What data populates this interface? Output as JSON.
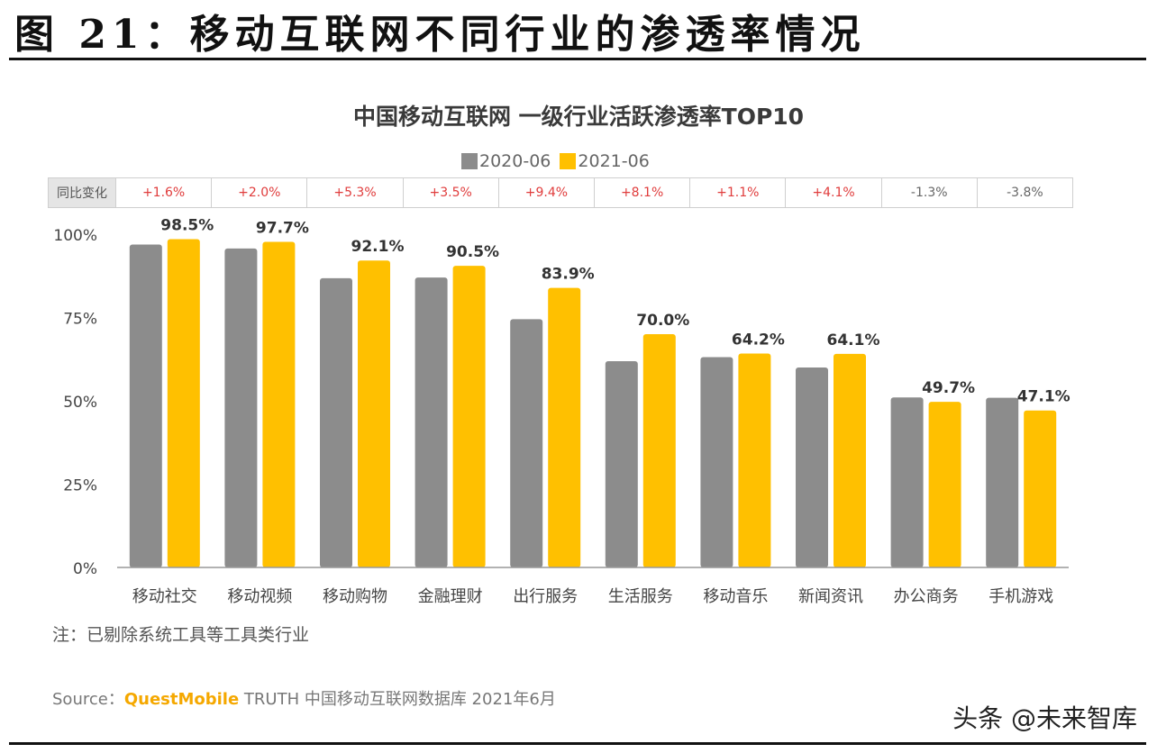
{
  "figure_title": "图 21：移动互联网不同行业的渗透率情况",
  "note": "注：已剔除系统工具等工具类行业",
  "source": {
    "prefix": "Source：",
    "brand": "QuestMobile",
    "rest": " TRUTH 中国移动互联网数据库 2021年6月"
  },
  "watermark": "头条 @未来智库",
  "colors": {
    "series_2020": "#8c8c8c",
    "series_2021": "#ffc000",
    "positive_change": "#e03c3c"
  },
  "yoy": {
    "header": "同比变化",
    "values": [
      "+1.6%",
      "+2.0%",
      "+5.3%",
      "+3.5%",
      "+9.4%",
      "+8.1%",
      "+1.1%",
      "+4.1%",
      "-1.3%",
      "-3.8%"
    ]
  },
  "chart_data": {
    "type": "bar",
    "title": "中国移动互联网 一级行业活跃渗透率TOP10",
    "categories": [
      "移动社交",
      "移动视频",
      "移动购物",
      "金融理财",
      "出行服务",
      "生活服务",
      "移动音乐",
      "新闻资讯",
      "办公商务",
      "手机游戏"
    ],
    "series": [
      {
        "name": "2020-06",
        "values": [
          96.9,
          95.7,
          86.8,
          87.0,
          74.5,
          61.9,
          63.1,
          60.0,
          51.0,
          50.9
        ]
      },
      {
        "name": "2021-06",
        "values": [
          98.5,
          97.7,
          92.1,
          90.5,
          83.9,
          70.0,
          64.2,
          64.1,
          49.7,
          47.1
        ],
        "labels": [
          "98.5%",
          "97.7%",
          "92.1%",
          "90.5%",
          "83.9%",
          "70.0%",
          "64.2%",
          "64.1%",
          "49.7%",
          "47.1%"
        ]
      }
    ],
    "y_ticks": [
      "0%",
      "25%",
      "50%",
      "75%",
      "100%"
    ],
    "ylim": [
      0,
      100
    ],
    "xlabel": "",
    "ylabel": ""
  }
}
